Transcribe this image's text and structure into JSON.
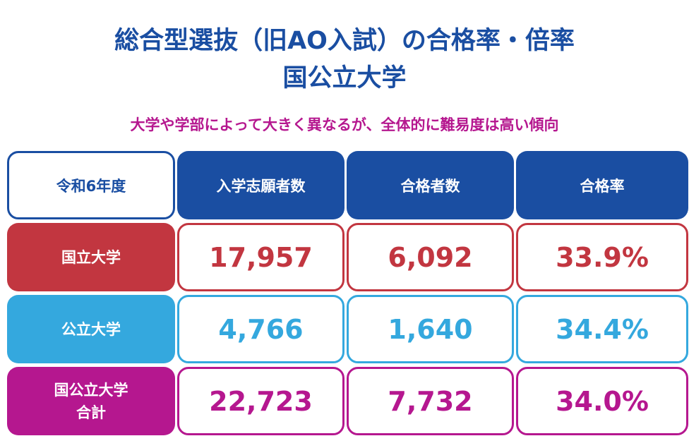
{
  "title_line1": "総合型選抜（旧AO入試）の合格率・倍率",
  "title_line2": "国公立大学",
  "subtitle": "大学や学部によって大きく異なるが、全体的に難易度は高い傾向",
  "table": {
    "header": {
      "year": "令和6年度",
      "columns": [
        "入学志願者数",
        "合格者数",
        "合格率"
      ]
    },
    "rows": [
      {
        "label_line1": "国立大学",
        "label_line2": "",
        "applicants": "17,957",
        "passed": "6,092",
        "rate": "33.9%",
        "color": "#c23640"
      },
      {
        "label_line1": "公立大学",
        "label_line2": "",
        "applicants": "4,766",
        "passed": "1,640",
        "rate": "34.4%",
        "color": "#34a8de"
      },
      {
        "label_line1": "国公立大学",
        "label_line2": "合計",
        "applicants": "22,723",
        "passed": "7,732",
        "rate": "34.0%",
        "color": "#b5178f"
      }
    ]
  },
  "colors": {
    "title": "#1a4ea2",
    "subtitle": "#b5178f",
    "header_bg": "#1a4ea2"
  }
}
